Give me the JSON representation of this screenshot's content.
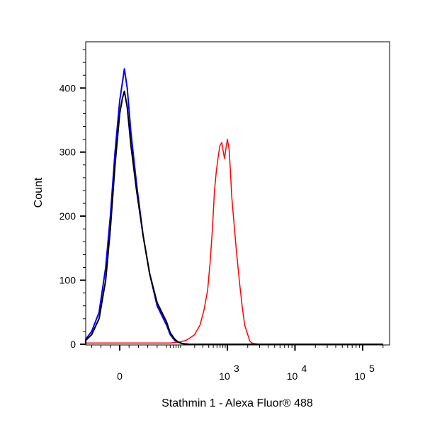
{
  "chart_data": {
    "type": "line",
    "title": "",
    "xlabel": "Stathmin 1 - Alexa Fluor® 488",
    "ylabel": "Count",
    "x_scale": "biexponential",
    "xlim": [
      -100,
      200000
    ],
    "ylim": [
      0,
      470
    ],
    "x_tick_labels": [
      {
        "value": 0,
        "base": "0",
        "exp": ""
      },
      {
        "value": 1000,
        "base": "10",
        "exp": "3"
      },
      {
        "value": 10000,
        "base": "10",
        "exp": "4"
      },
      {
        "value": 100000,
        "base": "10",
        "exp": "5"
      }
    ],
    "y_ticks": [
      0,
      100,
      200,
      300,
      400
    ],
    "grid": false,
    "legend": "none",
    "series": [
      {
        "color": "#ff0000",
        "x": [
          -100,
          60,
          100,
          130,
          160,
          200,
          260,
          320,
          380,
          430,
          480,
          530,
          580,
          630,
          690,
          760,
          820,
          870,
          930,
          1000,
          1060,
          1110,
          1160,
          1250,
          1350,
          1500,
          1650,
          1800,
          2000,
          2150,
          2300,
          2500,
          3000,
          200000
        ],
        "y": [
          2,
          2,
          4,
          6,
          10,
          15,
          30,
          55,
          85,
          130,
          180,
          240,
          270,
          290,
          310,
          315,
          300,
          290,
          305,
          320,
          305,
          270,
          230,
          190,
          150,
          100,
          60,
          30,
          15,
          5,
          2,
          1,
          0,
          0
        ]
      },
      {
        "color": "#0000ff",
        "x": [
          -100,
          -60,
          -40,
          -30,
          -22,
          -15,
          -10,
          -5,
          0,
          3,
          5,
          8,
          12,
          18,
          25,
          32,
          40,
          50,
          60,
          75,
          90,
          110,
          150,
          200000
        ],
        "y": [
          0,
          2,
          8,
          20,
          50,
          120,
          200,
          300,
          380,
          410,
          430,
          400,
          330,
          250,
          170,
          110,
          60,
          30,
          15,
          6,
          3,
          1,
          0,
          0
        ]
      },
      {
        "color": "#000000",
        "x": [
          -100,
          -60,
          -40,
          -30,
          -22,
          -15,
          -10,
          -5,
          0,
          3,
          5,
          8,
          12,
          18,
          25,
          32,
          40,
          50,
          60,
          75,
          90,
          110,
          150,
          200000
        ],
        "y": [
          0,
          2,
          6,
          15,
          40,
          100,
          180,
          280,
          360,
          385,
          395,
          370,
          310,
          240,
          170,
          110,
          65,
          35,
          18,
          8,
          3,
          1,
          0,
          0
        ]
      }
    ]
  }
}
